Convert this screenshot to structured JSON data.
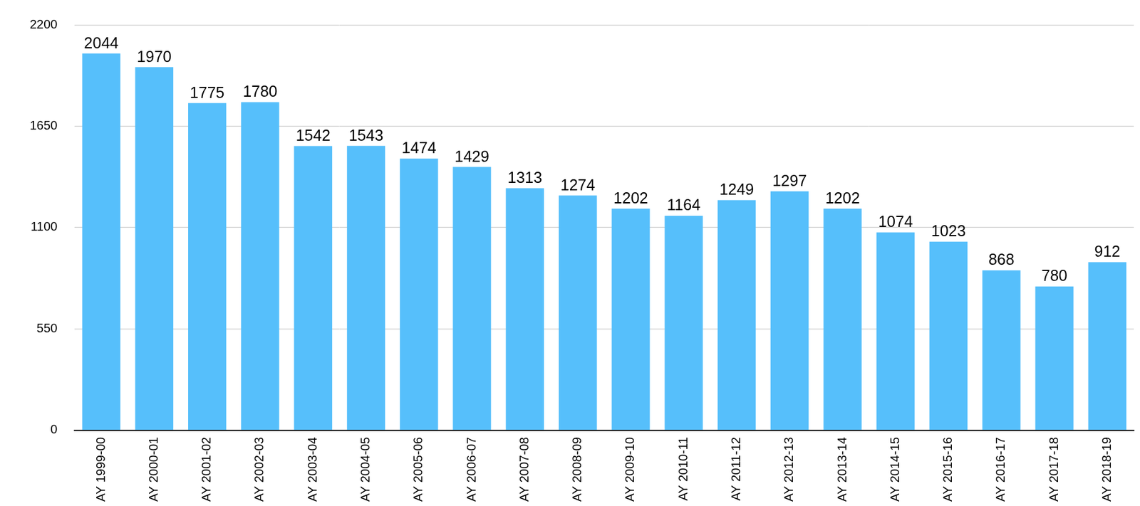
{
  "chart_data": {
    "type": "bar",
    "categories": [
      "AY 1999-00",
      "AY 2000-01",
      "AY 2001-02",
      "AY 2002-03",
      "AY 2003-04",
      "AY 2004-05",
      "AY 2005-06",
      "AY 2006-07",
      "AY 2007-08",
      "AY 2008-09",
      "AY 2009-10",
      "AY 2010-11",
      "AY 2011-12",
      "AY 2012-13",
      "AY 2013-14",
      "AY 2014-15",
      "AY 2015-16",
      "AY 2016-17",
      "AY 2017-18",
      "AY 2018-19"
    ],
    "values": [
      2044,
      1970,
      1775,
      1780,
      1542,
      1543,
      1474,
      1429,
      1313,
      1274,
      1202,
      1164,
      1249,
      1297,
      1202,
      1074,
      1023,
      868,
      780,
      912
    ],
    "color": "#56bffb",
    "ylim": [
      0,
      2200
    ],
    "yticks": [
      0,
      550,
      1100,
      1650,
      2200
    ],
    "grid": true,
    "data_labels": true
  }
}
